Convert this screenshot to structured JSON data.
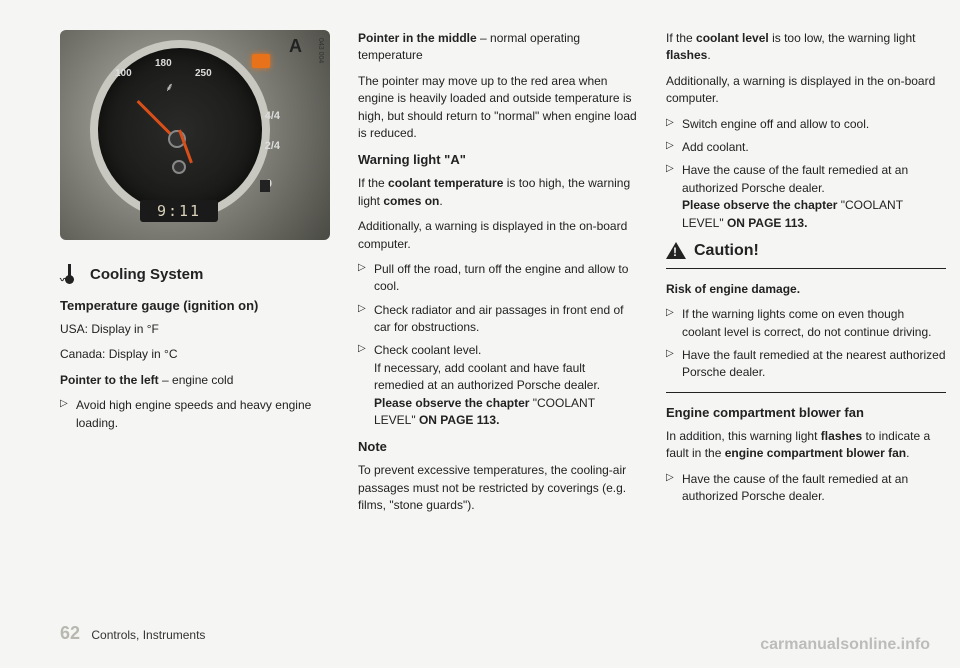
{
  "gauge": {
    "label_A": "A",
    "side_code": "043 004",
    "n180": "180",
    "n100": "100",
    "n250": "250",
    "n44": "4/4",
    "n24": "2/4",
    "n0": "0",
    "temp_sym": "⸙",
    "clock": "9:11"
  },
  "col1": {
    "section_title": "Cooling System",
    "sub1": "Temperature gauge (ignition on)",
    "usa": "USA: Display in °F",
    "canada": "Canada: Display in °C",
    "pointer_left_label": "Pointer to the left",
    "pointer_left_rest": " – engine cold",
    "bullet1": "Avoid high engine speeds and heavy engine loading."
  },
  "col2": {
    "pointer_mid_label": "Pointer in the middle",
    "pointer_mid_rest": " – normal operating temperature",
    "para1": "The pointer may move up to the red area when engine is heavily loaded and outside temperature is high, but should return to \"normal\" when engine load is reduced.",
    "warn_title": "Warning light \"A\"",
    "warn_p1a": "If the ",
    "warn_p1b": "coolant temperature",
    "warn_p1c": " is too high, the warning light ",
    "warn_p1d": "comes on",
    "warn_p1e": ".",
    "warn_p2": "Additionally, a warning is displayed in the on-board computer.",
    "b1": "Pull off the road, turn off the engine and allow to cool.",
    "b2": "Check radiator and air passages in front end of car for obstructions.",
    "b3a": "Check coolant level.",
    "b3b": "If necessary, add coolant and have fault remedied at an authorized Porsche dealer.",
    "b3c_label": "Please observe the chapter",
    "b3c_rest": " \"COOLANT LEVEL\" ",
    "b3c_page": "ON PAGE 113.",
    "note_title": "Note",
    "note_p": "To prevent excessive temperatures, the cooling-air passages must not be restricted by coverings (e.g. films, \"stone guards\")."
  },
  "col3": {
    "p1a": "If the ",
    "p1b": "coolant level",
    "p1c": " is too low, the warning light ",
    "p1d": "flashes",
    "p1e": ".",
    "p2": "Additionally, a warning is displayed in the on-board computer.",
    "b1": "Switch engine off and allow to cool.",
    "b2": "Add coolant.",
    "b3a": "Have the cause of the fault remedied at an authorized Porsche dealer.",
    "b3b_label": "Please observe the chapter",
    "b3b_rest": " \"COOLANT LEVEL\" ",
    "b3b_page": "ON PAGE 113.",
    "caution": "Caution!",
    "risk": "Risk of engine damage.",
    "rb1": "If the warning lights come on even though coolant level is correct, do not continue driving.",
    "rb2": "Have the fault remedied at the nearest authorized Porsche dealer.",
    "fan_title": "Engine compartment blower fan",
    "fan_p1a": "In addition, this warning light ",
    "fan_p1b": "flashes",
    "fan_p1c": " to indicate a fault in the ",
    "fan_p1d": "engine compartment blower fan",
    "fan_p1e": ".",
    "fb1": "Have the cause of the fault remedied at an authorized Porsche dealer."
  },
  "footer": {
    "page": "62",
    "section": "Controls, Instruments"
  },
  "watermark": "carmanualsonline.info"
}
